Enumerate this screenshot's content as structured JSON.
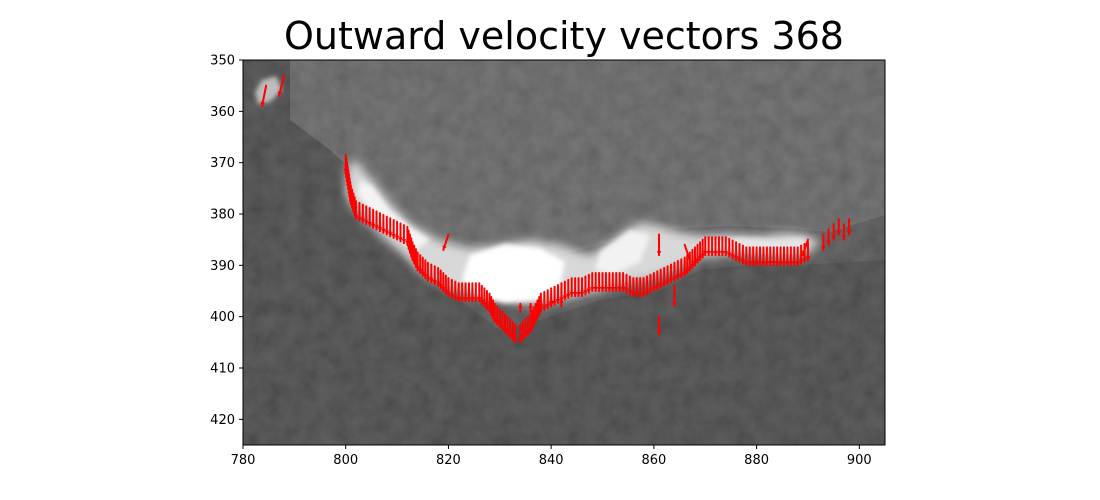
{
  "chart_data": {
    "type": "image-with-vectors",
    "title": "Outward velocity vectors 368",
    "xlabel": "",
    "ylabel": "",
    "xlim": [
      780,
      905
    ],
    "ylim": [
      425,
      350
    ],
    "y_inverted": true,
    "grid": false,
    "xticks": [
      780,
      800,
      820,
      840,
      860,
      880,
      900
    ],
    "yticks": [
      350,
      360,
      370,
      380,
      390,
      400,
      410,
      420
    ],
    "background": "grayscale satellite image, bright white cloud/ice band along the contour, dark gray elsewhere",
    "vector_color": "#ff0000",
    "contour_vectors": {
      "x": [
        800,
        801,
        802,
        804,
        806,
        808,
        810,
        812,
        813,
        814,
        816,
        818,
        820,
        822,
        824,
        826,
        827,
        828,
        829,
        830,
        831,
        832,
        833,
        834,
        835,
        836,
        837,
        838,
        840,
        842,
        844,
        846,
        848,
        850,
        852,
        854,
        856,
        858,
        860,
        862,
        864,
        866,
        868,
        870,
        872,
        874,
        876,
        878,
        880,
        882,
        884,
        886,
        888,
        890
      ],
      "y": [
        372,
        378,
        381,
        382,
        383,
        384,
        385,
        386,
        389,
        391,
        393,
        394,
        396,
        397,
        397,
        397,
        398,
        399,
        401,
        402,
        403,
        404,
        405,
        405,
        404,
        403,
        401,
        399,
        398,
        397,
        396,
        396,
        395,
        395,
        395,
        395,
        396,
        396,
        395,
        394,
        393,
        392,
        390,
        388,
        388,
        388,
        389,
        390,
        390,
        390,
        390,
        390,
        390,
        389
      ],
      "dy": 3.5
    },
    "extra_vectors": [
      {
        "x": 784.5,
        "y": 355,
        "dx": -0.8,
        "dy": 4
      },
      {
        "x": 788,
        "y": 353,
        "dx": -1,
        "dy": 4
      },
      {
        "x": 820,
        "y": 384,
        "dx": -1,
        "dy": 3
      },
      {
        "x": 861,
        "y": 384,
        "dx": 0,
        "dy": 4
      },
      {
        "x": 861,
        "y": 400,
        "dx": 0,
        "dy": 3.5
      },
      {
        "x": 864,
        "y": 394,
        "dx": 0,
        "dy": 4
      },
      {
        "x": 834,
        "y": 399,
        "dx": 0,
        "dy": -1.5
      },
      {
        "x": 836,
        "y": 399,
        "dx": 0,
        "dy": -1.5
      },
      {
        "x": 838,
        "y": 398.5,
        "dx": 0,
        "dy": -1.5
      },
      {
        "x": 840,
        "y": 398,
        "dx": 0,
        "dy": -1.5
      },
      {
        "x": 842,
        "y": 398,
        "dx": 0,
        "dy": -1.5
      },
      {
        "x": 866,
        "y": 386,
        "dx": 1,
        "dy": 3
      },
      {
        "x": 868,
        "y": 388,
        "dx": 0,
        "dy": 2
      },
      {
        "x": 890,
        "y": 385,
        "dx": -1,
        "dy": 3
      },
      {
        "x": 893,
        "y": 384,
        "dx": 0,
        "dy": 3
      },
      {
        "x": 894,
        "y": 383,
        "dx": 0,
        "dy": 3
      },
      {
        "x": 895,
        "y": 382,
        "dx": 0,
        "dy": 3
      },
      {
        "x": 896,
        "y": 381,
        "dx": 0,
        "dy": 3
      },
      {
        "x": 897,
        "y": 382,
        "dx": 0,
        "dy": 3
      },
      {
        "x": 898,
        "y": 381,
        "dx": 0,
        "dy": 3
      }
    ]
  }
}
